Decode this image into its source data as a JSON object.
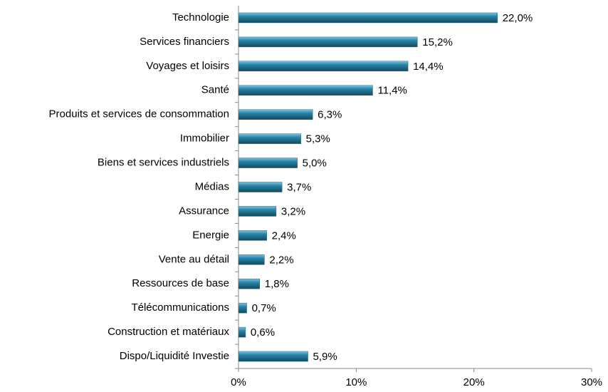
{
  "chart_data": {
    "type": "bar",
    "orientation": "horizontal",
    "categories": [
      "Technologie",
      "Services financiers",
      "Voyages et loisirs",
      "Santé",
      "Produits et services de consommation",
      "Immobilier",
      "Biens et services industriels",
      "Médias",
      "Assurance",
      "Energie",
      "Vente au détail",
      "Ressources de base",
      "Télécommunications",
      "Construction et matériaux",
      "Dispo/Liquidité Investie"
    ],
    "values": [
      22.0,
      15.2,
      14.4,
      11.4,
      6.3,
      5.3,
      5.0,
      3.7,
      3.2,
      2.4,
      2.2,
      1.8,
      0.7,
      0.6,
      5.9
    ],
    "value_labels": [
      "22,0%",
      "15,2%",
      "14,4%",
      "11,4%",
      "6,3%",
      "5,3%",
      "5,0%",
      "3,7%",
      "3,2%",
      "2,4%",
      "2,2%",
      "1,8%",
      "0,7%",
      "0,6%",
      "5,9%"
    ],
    "color": "#1f7190",
    "xlim": [
      0,
      30
    ],
    "xticks": [
      {
        "value": 0,
        "label": "0%"
      },
      {
        "value": 10,
        "label": "10%"
      },
      {
        "value": 20,
        "label": "20%"
      },
      {
        "value": 30,
        "label": "30%"
      }
    ],
    "grid": false
  }
}
